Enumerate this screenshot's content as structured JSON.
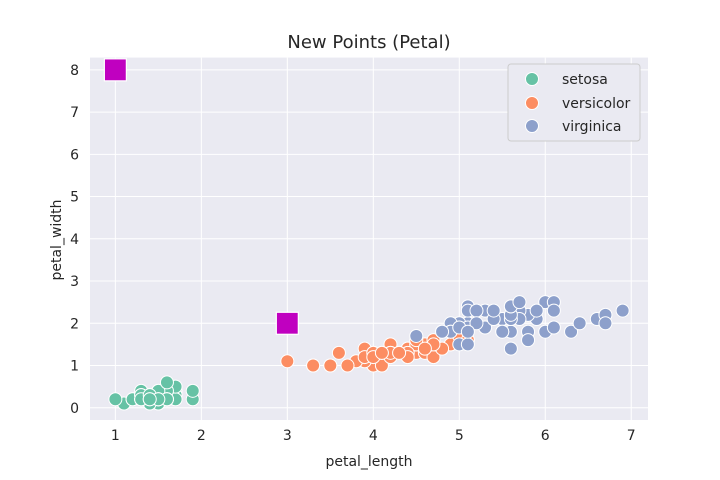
{
  "chart_data": {
    "type": "scatter",
    "title": "New Points (Petal)",
    "xlabel": "petal_length",
    "ylabel": "petal_width",
    "xlim": [
      0.705,
      7.195
    ],
    "ylim": [
      -0.29,
      8.29
    ],
    "xticks": [
      1,
      2,
      3,
      4,
      5,
      6,
      7
    ],
    "yticks": [
      0,
      1,
      2,
      3,
      4,
      5,
      6,
      7,
      8
    ],
    "grid": true,
    "legend_position": "top-right",
    "series": [
      {
        "name": "setosa",
        "color": "#66c2a5",
        "marker": "circle",
        "points": [
          [
            1.4,
            0.2
          ],
          [
            1.4,
            0.2
          ],
          [
            1.3,
            0.2
          ],
          [
            1.5,
            0.2
          ],
          [
            1.4,
            0.2
          ],
          [
            1.7,
            0.4
          ],
          [
            1.4,
            0.3
          ],
          [
            1.5,
            0.2
          ],
          [
            1.4,
            0.2
          ],
          [
            1.5,
            0.1
          ],
          [
            1.5,
            0.2
          ],
          [
            1.6,
            0.2
          ],
          [
            1.4,
            0.1
          ],
          [
            1.1,
            0.1
          ],
          [
            1.2,
            0.2
          ],
          [
            1.5,
            0.4
          ],
          [
            1.3,
            0.4
          ],
          [
            1.4,
            0.3
          ],
          [
            1.7,
            0.3
          ],
          [
            1.5,
            0.3
          ],
          [
            1.7,
            0.2
          ],
          [
            1.5,
            0.4
          ],
          [
            1.0,
            0.2
          ],
          [
            1.7,
            0.5
          ],
          [
            1.9,
            0.2
          ],
          [
            1.6,
            0.2
          ],
          [
            1.6,
            0.4
          ],
          [
            1.5,
            0.2
          ],
          [
            1.4,
            0.2
          ],
          [
            1.6,
            0.2
          ],
          [
            1.6,
            0.2
          ],
          [
            1.5,
            0.4
          ],
          [
            1.5,
            0.1
          ],
          [
            1.4,
            0.2
          ],
          [
            1.5,
            0.2
          ],
          [
            1.2,
            0.2
          ],
          [
            1.3,
            0.2
          ],
          [
            1.4,
            0.1
          ],
          [
            1.3,
            0.2
          ],
          [
            1.5,
            0.2
          ],
          [
            1.3,
            0.3
          ],
          [
            1.3,
            0.3
          ],
          [
            1.3,
            0.2
          ],
          [
            1.6,
            0.6
          ],
          [
            1.9,
            0.4
          ],
          [
            1.4,
            0.3
          ],
          [
            1.6,
            0.2
          ],
          [
            1.4,
            0.2
          ],
          [
            1.5,
            0.2
          ],
          [
            1.4,
            0.2
          ]
        ]
      },
      {
        "name": "versicolor",
        "color": "#fc8d62",
        "marker": "circle",
        "points": [
          [
            4.7,
            1.4
          ],
          [
            4.5,
            1.5
          ],
          [
            4.9,
            1.5
          ],
          [
            4.0,
            1.3
          ],
          [
            4.6,
            1.5
          ],
          [
            4.5,
            1.3
          ],
          [
            4.7,
            1.6
          ],
          [
            3.3,
            1.0
          ],
          [
            4.6,
            1.3
          ],
          [
            3.9,
            1.4
          ],
          [
            3.5,
            1.0
          ],
          [
            4.2,
            1.5
          ],
          [
            4.0,
            1.0
          ],
          [
            4.7,
            1.4
          ],
          [
            3.6,
            1.3
          ],
          [
            4.4,
            1.4
          ],
          [
            4.5,
            1.5
          ],
          [
            4.1,
            1.0
          ],
          [
            4.5,
            1.5
          ],
          [
            3.9,
            1.1
          ],
          [
            4.8,
            1.8
          ],
          [
            4.0,
            1.3
          ],
          [
            4.9,
            1.5
          ],
          [
            4.7,
            1.2
          ],
          [
            4.3,
            1.3
          ],
          [
            4.4,
            1.4
          ],
          [
            4.8,
            1.4
          ],
          [
            5.0,
            1.7
          ],
          [
            4.5,
            1.5
          ],
          [
            3.5,
            1.0
          ],
          [
            3.8,
            1.1
          ],
          [
            3.7,
            1.0
          ],
          [
            3.9,
            1.2
          ],
          [
            5.1,
            1.6
          ],
          [
            4.5,
            1.5
          ],
          [
            4.5,
            1.6
          ],
          [
            4.7,
            1.5
          ],
          [
            4.4,
            1.3
          ],
          [
            4.1,
            1.3
          ],
          [
            4.0,
            1.3
          ],
          [
            4.4,
            1.2
          ],
          [
            4.6,
            1.4
          ],
          [
            4.0,
            1.2
          ],
          [
            3.3,
            1.0
          ],
          [
            4.2,
            1.3
          ],
          [
            4.2,
            1.2
          ],
          [
            4.2,
            1.3
          ],
          [
            4.3,
            1.3
          ],
          [
            3.0,
            1.1
          ],
          [
            4.1,
            1.3
          ]
        ]
      },
      {
        "name": "virginica",
        "color": "#8da0cb",
        "marker": "circle",
        "points": [
          [
            6.0,
            2.5
          ],
          [
            5.1,
            1.9
          ],
          [
            5.9,
            2.1
          ],
          [
            5.6,
            1.8
          ],
          [
            5.8,
            2.2
          ],
          [
            6.6,
            2.1
          ],
          [
            4.5,
            1.7
          ],
          [
            6.3,
            1.8
          ],
          [
            5.8,
            1.8
          ],
          [
            6.1,
            2.5
          ],
          [
            5.1,
            2.0
          ],
          [
            5.3,
            1.9
          ],
          [
            5.5,
            2.1
          ],
          [
            5.0,
            2.0
          ],
          [
            5.1,
            2.4
          ],
          [
            5.3,
            2.3
          ],
          [
            5.5,
            1.8
          ],
          [
            6.7,
            2.2
          ],
          [
            6.9,
            2.3
          ],
          [
            5.0,
            1.5
          ],
          [
            5.7,
            2.3
          ],
          [
            4.9,
            2.0
          ],
          [
            6.7,
            2.0
          ],
          [
            4.9,
            1.8
          ],
          [
            5.7,
            2.1
          ],
          [
            6.0,
            1.8
          ],
          [
            4.8,
            1.8
          ],
          [
            4.9,
            1.8
          ],
          [
            5.6,
            2.1
          ],
          [
            5.8,
            1.6
          ],
          [
            6.1,
            1.9
          ],
          [
            6.4,
            2.0
          ],
          [
            5.6,
            2.2
          ],
          [
            5.1,
            1.5
          ],
          [
            5.6,
            1.4
          ],
          [
            6.1,
            2.3
          ],
          [
            5.6,
            2.4
          ],
          [
            5.5,
            1.8
          ],
          [
            4.8,
            1.8
          ],
          [
            5.4,
            2.1
          ],
          [
            5.6,
            2.4
          ],
          [
            5.1,
            2.3
          ],
          [
            5.1,
            1.9
          ],
          [
            5.9,
            2.3
          ],
          [
            5.7,
            2.5
          ],
          [
            5.2,
            2.3
          ],
          [
            5.0,
            1.9
          ],
          [
            5.2,
            2.0
          ],
          [
            5.4,
            2.3
          ],
          [
            5.1,
            1.8
          ]
        ]
      },
      {
        "color": "#c000c0",
        "marker": "square",
        "points": [
          [
            1,
            8
          ],
          [
            3,
            2
          ]
        ]
      }
    ]
  }
}
